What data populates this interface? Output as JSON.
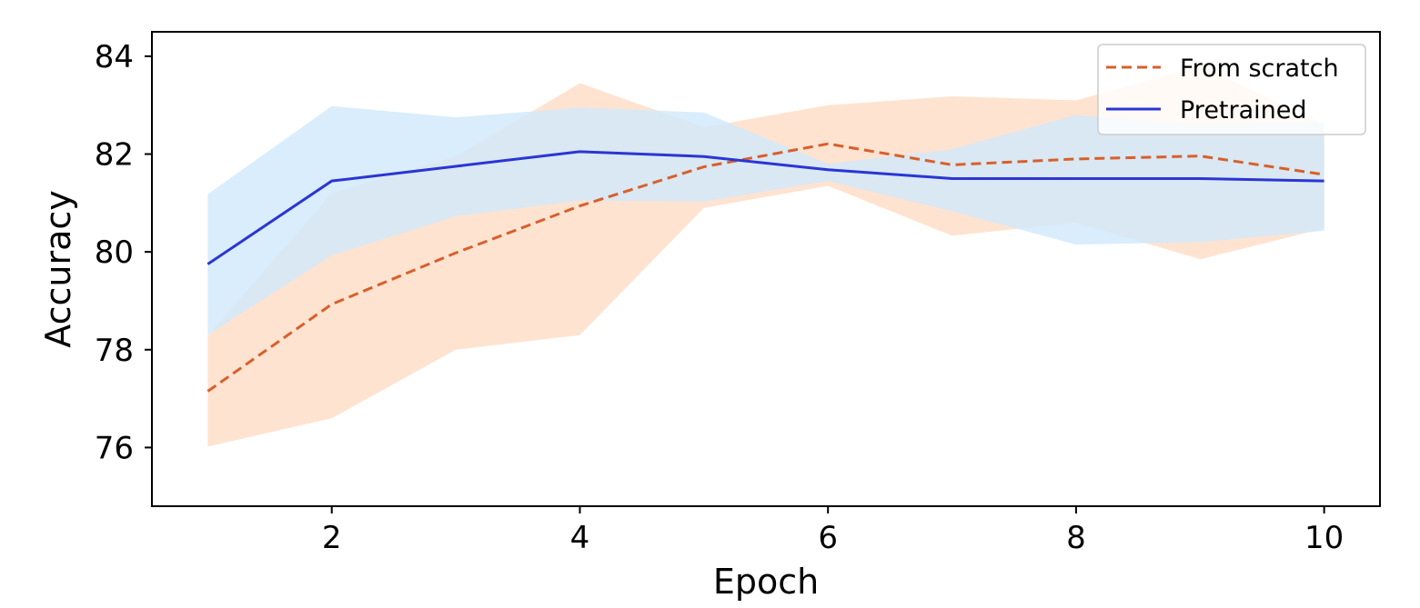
{
  "chart_data": {
    "type": "line",
    "xlabel": "Epoch",
    "ylabel": "Accuracy",
    "xlim": [
      0.55,
      10.45
    ],
    "ylim": [
      74.8,
      84.5
    ],
    "xticks": [
      2,
      4,
      6,
      8,
      10
    ],
    "yticks": [
      76,
      78,
      80,
      82,
      84
    ],
    "grid": false,
    "legend_position": "top-right",
    "x": [
      1,
      2,
      3,
      4,
      5,
      6,
      7,
      8,
      9,
      10
    ],
    "series": [
      {
        "name": "From scratch",
        "style": "dashed",
        "color": "#d95f2b",
        "band_color": "#ffe3d1",
        "values": [
          77.15,
          78.93,
          79.98,
          80.94,
          81.74,
          82.21,
          81.78,
          81.9,
          81.96,
          81.58
        ],
        "lower": [
          76.02,
          76.6,
          78.0,
          78.3,
          80.9,
          81.35,
          80.33,
          80.6,
          79.85,
          80.48
        ],
        "upper": [
          78.28,
          81.2,
          81.95,
          83.45,
          82.55,
          83.0,
          83.18,
          83.1,
          83.8,
          82.6
        ]
      },
      {
        "name": "Pretrained",
        "style": "solid",
        "color": "#2b35d4",
        "band_color": "#cfe9fb",
        "values": [
          79.75,
          81.45,
          81.75,
          82.05,
          81.95,
          81.68,
          81.5,
          81.5,
          81.5,
          81.45
        ],
        "lower": [
          78.3,
          79.93,
          80.73,
          81.05,
          81.03,
          81.45,
          80.83,
          80.15,
          80.2,
          80.43
        ],
        "upper": [
          81.18,
          82.98,
          82.75,
          82.95,
          82.85,
          81.8,
          82.1,
          82.8,
          82.6,
          82.65
        ]
      }
    ]
  }
}
